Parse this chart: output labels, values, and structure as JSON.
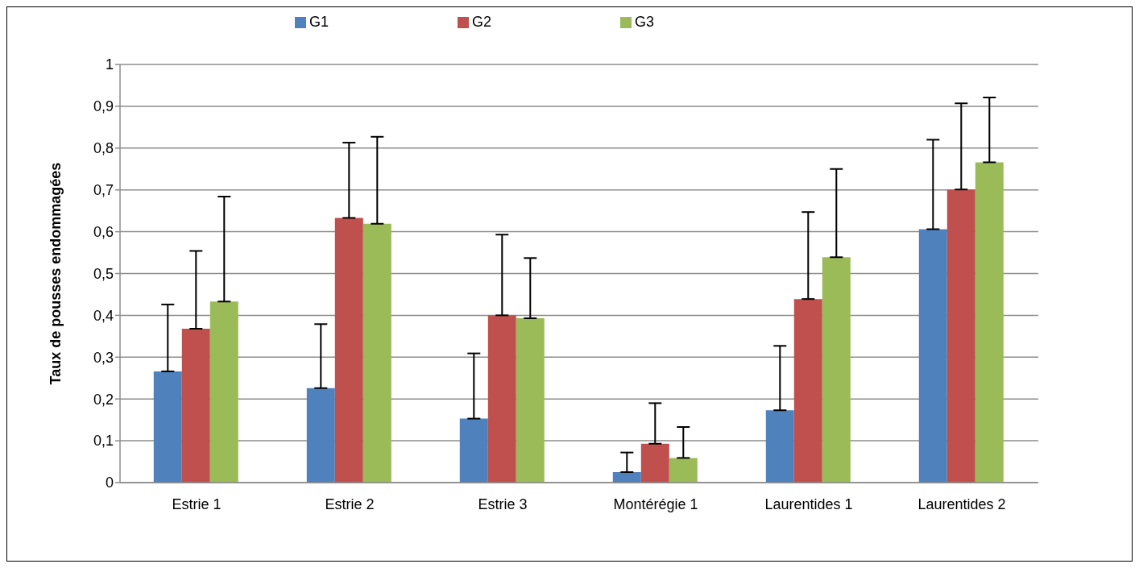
{
  "chart_data": {
    "type": "bar",
    "ylabel": "Taux de pousses endommagées",
    "categories": [
      "Estrie 1",
      "Estrie 2",
      "Estrie 3",
      "Montérégie 1",
      "Laurentides 1",
      "Laurentides 2"
    ],
    "series": [
      {
        "name": "G1",
        "color": "#4f81bd",
        "values": [
          0.266,
          0.226,
          0.153,
          0.025,
          0.173,
          0.606
        ],
        "errors": [
          [
            0.266,
            0.426
          ],
          [
            0.226,
            0.379
          ],
          [
            0.153,
            0.309
          ],
          [
            0.025,
            0.072
          ],
          [
            0.173,
            0.327
          ],
          [
            0.606,
            0.82
          ]
        ]
      },
      {
        "name": "G2",
        "color": "#c0504d",
        "values": [
          0.368,
          0.633,
          0.4,
          0.093,
          0.439,
          0.701
        ],
        "errors": [
          [
            0.368,
            0.554
          ],
          [
            0.633,
            0.813
          ],
          [
            0.4,
            0.593
          ],
          [
            0.093,
            0.19
          ],
          [
            0.439,
            0.647
          ],
          [
            0.701,
            0.907
          ]
        ]
      },
      {
        "name": "G3",
        "color": "#9bbb59",
        "values": [
          0.433,
          0.619,
          0.393,
          0.059,
          0.539,
          0.766
        ],
        "errors": [
          [
            0.433,
            0.684
          ],
          [
            0.619,
            0.827
          ],
          [
            0.393,
            0.537
          ],
          [
            0.059,
            0.133
          ],
          [
            0.539,
            0.75
          ],
          [
            0.766,
            0.921
          ]
        ]
      }
    ],
    "ylim": [
      0,
      1
    ],
    "yticks": [
      0,
      {
        "value": 0.1,
        "label": "0,1"
      },
      {
        "value": 0.2,
        "label": "0,2"
      },
      {
        "value": 0.3,
        "label": "0,3"
      },
      {
        "value": 0.4,
        "label": "0,4"
      },
      {
        "value": 0.5,
        "label": "0,5"
      },
      {
        "value": 0.6,
        "label": "0,6"
      },
      {
        "value": 0.7,
        "label": "0,7"
      },
      {
        "value": 0.8,
        "label": "0,8"
      },
      {
        "value": 0.9,
        "label": "0,9"
      },
      1
    ],
    "grid": "y",
    "legend": "top"
  }
}
